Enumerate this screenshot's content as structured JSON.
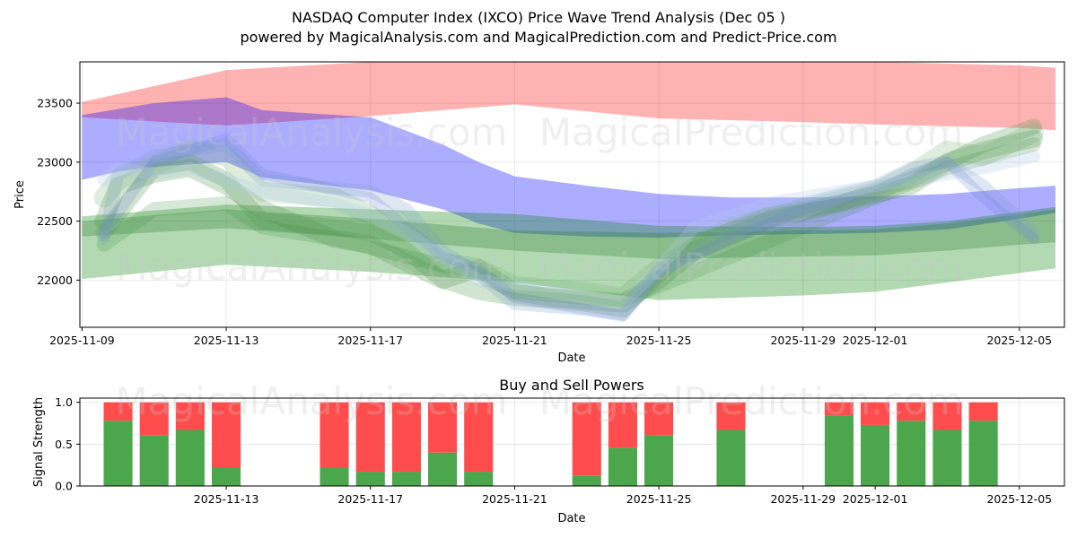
{
  "header": {
    "title": "NASDAQ Computer Index (IXCO) Price Wave Trend Analysis (Dec 05 )",
    "subtitle": "powered by MagicalAnalysis.com and MagicalPrediction.com and Predict-Price.com"
  },
  "watermarks": [
    "MagicalAnalysis.com",
    "MagicalPrediction.com"
  ],
  "chart_data": [
    {
      "type": "area",
      "title": "NASDAQ Computer Index (IXCO) Price Wave Trend Analysis (Dec 05 )",
      "xlabel": "Date",
      "ylabel": "Price",
      "x_range": [
        "2025-11-09",
        "2025-12-06"
      ],
      "ylim": [
        21600,
        23850
      ],
      "x_ticks": [
        {
          "date": "2025-11-09",
          "label": "2025-11-09"
        },
        {
          "date": "2025-11-13",
          "label": "2025-11-13"
        },
        {
          "date": "2025-11-17",
          "label": "2025-11-17"
        },
        {
          "date": "2025-11-21",
          "label": "2025-11-21"
        },
        {
          "date": "2025-11-25",
          "label": "2025-11-25"
        },
        {
          "date": "2025-11-29",
          "label": "2025-11-29"
        },
        {
          "date": "2025-12-01",
          "label": "2025-12-01"
        },
        {
          "date": "2025-12-05",
          "label": "2025-12-05"
        }
      ],
      "y_ticks": [
        {
          "value": 22000,
          "label": "22000"
        },
        {
          "value": 22500,
          "label": "22500"
        },
        {
          "value": 23000,
          "label": "23000"
        },
        {
          "value": 23500,
          "label": "23500"
        }
      ],
      "grid": true,
      "bands": [
        {
          "name": "red-upper-band",
          "color": "#ff0000",
          "opacity": 0.3,
          "x": [
            "2025-11-09",
            "2025-11-13",
            "2025-11-17",
            "2025-11-21",
            "2025-11-25",
            "2025-11-29",
            "2025-12-01",
            "2025-12-05",
            "2025-12-06"
          ],
          "upper": [
            23510,
            23780,
            23850,
            23850,
            23850,
            23850,
            23850,
            23820,
            23800
          ],
          "lower": [
            23380,
            23310,
            23390,
            23490,
            23370,
            23340,
            23320,
            23290,
            23270
          ]
        },
        {
          "name": "blue-band",
          "color": "#0000ff",
          "opacity": 0.32,
          "x": [
            "2025-11-09",
            "2025-11-10",
            "2025-11-11",
            "2025-11-13",
            "2025-11-14",
            "2025-11-17",
            "2025-11-19",
            "2025-11-20",
            "2025-11-21",
            "2025-11-23",
            "2025-11-25",
            "2025-11-27",
            "2025-11-29",
            "2025-12-01",
            "2025-12-03",
            "2025-12-05",
            "2025-12-06"
          ],
          "upper": [
            23400,
            23450,
            23500,
            23550,
            23440,
            23380,
            23150,
            23000,
            22880,
            22800,
            22730,
            22700,
            22700,
            22710,
            22730,
            22780,
            22800
          ],
          "lower": [
            22850,
            22920,
            22960,
            23000,
            22870,
            22760,
            22600,
            22480,
            22400,
            22370,
            22360,
            22380,
            22390,
            22400,
            22430,
            22520,
            22570
          ]
        },
        {
          "name": "green-lower-band",
          "color": "#008000",
          "opacity": 0.3,
          "x": [
            "2025-11-09",
            "2025-11-13",
            "2025-11-17",
            "2025-11-21",
            "2025-11-25",
            "2025-11-29",
            "2025-12-01",
            "2025-12-03",
            "2025-12-05",
            "2025-12-06"
          ],
          "upper": [
            22540,
            22640,
            22600,
            22560,
            22460,
            22450,
            22460,
            22500,
            22580,
            22620
          ],
          "lower": [
            22010,
            22130,
            22070,
            21980,
            21830,
            21870,
            21900,
            21980,
            22060,
            22100
          ]
        },
        {
          "name": "dark-green-band",
          "color": "#2e7d32",
          "opacity": 0.3,
          "x": [
            "2025-11-09",
            "2025-11-13",
            "2025-11-17",
            "2025-11-21",
            "2025-11-25",
            "2025-11-29",
            "2025-12-01",
            "2025-12-03",
            "2025-12-05",
            "2025-12-06"
          ],
          "upper": [
            22500,
            22600,
            22520,
            22420,
            22400,
            22420,
            22430,
            22480,
            22560,
            22600
          ],
          "lower": [
            22370,
            22440,
            22350,
            22250,
            22180,
            22200,
            22210,
            22250,
            22300,
            22320
          ]
        }
      ],
      "wave_lines": [
        {
          "color": "#5a9e5a",
          "opacity": 0.28,
          "width": 18,
          "dates": [
            "2025-11-09.6",
            "2025-11-11",
            "2025-11-12",
            "2025-11-13",
            "2025-11-14",
            "2025-11-16",
            "2025-11-17",
            "2025-11-18",
            "2025-11-19",
            "2025-11-20",
            "2025-11-21",
            "2025-11-22",
            "2025-11-23",
            "2025-11-24",
            "2025-11-25",
            "2025-11-26",
            "2025-11-28",
            "2025-11-30",
            "2025-12-02",
            "2025-12-03",
            "2025-12-04",
            "2025-12-05.4"
          ],
          "values": [
            22400,
            22950,
            23000,
            22850,
            22500,
            22450,
            22400,
            22250,
            22000,
            21900,
            21850,
            21830,
            21800,
            21750,
            22050,
            22300,
            22550,
            22650,
            22850,
            23000,
            23150,
            23300
          ]
        },
        {
          "color": "#4a8f4a",
          "opacity": 0.25,
          "width": 20,
          "dates": [
            "2025-11-09.6",
            "2025-11-10",
            "2025-11-11",
            "2025-11-12",
            "2025-11-13",
            "2025-11-14",
            "2025-11-16",
            "2025-11-17",
            "2025-11-18",
            "2025-11-19",
            "2025-11-20",
            "2025-11-21",
            "2025-11-22",
            "2025-11-24",
            "2025-11-25",
            "2025-11-26",
            "2025-11-28",
            "2025-11-30",
            "2025-12-02",
            "2025-12-03",
            "2025-12-04",
            "2025-12-05.4"
          ],
          "values": [
            22500,
            22800,
            22900,
            22950,
            22800,
            22600,
            22350,
            22300,
            22150,
            22000,
            22100,
            21900,
            21850,
            21800,
            22000,
            22250,
            22500,
            22650,
            22800,
            23000,
            23100,
            23200
          ]
        },
        {
          "color": "#6aae6a",
          "opacity": 0.22,
          "width": 22,
          "dates": [
            "2025-11-09.6",
            "2025-11-10",
            "2025-11-12",
            "2025-11-13",
            "2025-11-14",
            "2025-11-16",
            "2025-11-17",
            "2025-11-18",
            "2025-11-19",
            "2025-11-20",
            "2025-11-21",
            "2025-11-23",
            "2025-11-24",
            "2025-11-25",
            "2025-11-27",
            "2025-11-29",
            "2025-12-01",
            "2025-12-02",
            "2025-12-03",
            "2025-12-04",
            "2025-12-05.4"
          ],
          "values": [
            22700,
            22850,
            23100,
            23050,
            22750,
            22700,
            22550,
            22300,
            22150,
            22100,
            21950,
            21900,
            21850,
            22100,
            22450,
            22600,
            22750,
            22900,
            23100,
            23050,
            23250
          ]
        },
        {
          "color": "#3c8a3c",
          "opacity": 0.2,
          "width": 16,
          "dates": [
            "2025-11-09.6",
            "2025-11-11",
            "2025-11-13",
            "2025-11-14",
            "2025-11-16",
            "2025-11-18",
            "2025-11-20",
            "2025-11-21",
            "2025-11-23",
            "2025-11-24",
            "2025-11-25",
            "2025-11-27",
            "2025-11-29",
            "2025-12-01",
            "2025-12-03",
            "2025-12-05.4"
          ],
          "values": [
            22300,
            22600,
            22650,
            22450,
            22350,
            22200,
            22050,
            21900,
            21850,
            21830,
            21950,
            22200,
            22450,
            22700,
            22950,
            23150
          ]
        },
        {
          "color": "#7f9fd0",
          "opacity": 0.25,
          "width": 14,
          "dates": [
            "2025-11-09.6",
            "2025-11-10",
            "2025-11-11",
            "2025-11-13",
            "2025-11-14",
            "2025-11-17",
            "2025-11-18",
            "2025-11-19",
            "2025-11-20",
            "2025-11-21",
            "2025-11-23",
            "2025-11-24",
            "2025-11-25",
            "2025-11-27",
            "2025-11-29",
            "2025-12-01",
            "2025-12-02",
            "2025-12-03",
            "2025-12-04",
            "2025-12-05.4"
          ],
          "values": [
            22350,
            22900,
            23050,
            23150,
            22850,
            22750,
            22600,
            22250,
            22050,
            21800,
            21750,
            21700,
            22100,
            22400,
            22650,
            22800,
            22950,
            23000,
            22800,
            22400
          ]
        },
        {
          "color": "#6a7fd6",
          "opacity": 0.22,
          "width": 12,
          "dates": [
            "2025-11-09.6",
            "2025-11-11",
            "2025-11-12",
            "2025-11-13",
            "2025-11-14",
            "2025-11-17",
            "2025-11-19",
            "2025-11-20",
            "2025-11-21",
            "2025-11-23",
            "2025-11-24",
            "2025-11-25",
            "2025-11-27",
            "2025-11-29",
            "2025-12-01",
            "2025-12-02",
            "2025-12-03",
            "2025-12-04",
            "2025-12-05.4"
          ],
          "values": [
            22400,
            23000,
            23100,
            23200,
            22900,
            22700,
            22200,
            22100,
            21850,
            21750,
            21700,
            22050,
            22350,
            22600,
            22750,
            22900,
            23000,
            22700,
            22350
          ]
        },
        {
          "color": "#b0c8e8",
          "opacity": 0.28,
          "width": 14,
          "dates": [
            "2025-11-09.6",
            "2025-11-10",
            "2025-11-11",
            "2025-11-12",
            "2025-11-13",
            "2025-11-14",
            "2025-11-16",
            "2025-11-17",
            "2025-11-18",
            "2025-11-19",
            "2025-11-20",
            "2025-11-21",
            "2025-11-23",
            "2025-11-24",
            "2025-11-25",
            "2025-11-26",
            "2025-11-28",
            "2025-11-30",
            "2025-12-02",
            "2025-12-04",
            "2025-12-05.4"
          ],
          "values": [
            22850,
            22950,
            22900,
            22950,
            22850,
            22750,
            22650,
            22550,
            22400,
            22200,
            22000,
            21950,
            21850,
            21800,
            22100,
            22450,
            22650,
            22750,
            22850,
            22950,
            23050
          ]
        }
      ]
    },
    {
      "type": "bar",
      "title": "Buy and Sell Powers",
      "xlabel": "Date",
      "ylabel": "Signal Strength",
      "x_range": [
        "2025-11-09",
        "2025-12-06"
      ],
      "ylim": [
        0,
        1.05
      ],
      "x_ticks": [
        {
          "date": "2025-11-13",
          "label": "2025-11-13"
        },
        {
          "date": "2025-11-17",
          "label": "2025-11-17"
        },
        {
          "date": "2025-11-21",
          "label": "2025-11-21"
        },
        {
          "date": "2025-11-25",
          "label": "2025-11-25"
        },
        {
          "date": "2025-11-29",
          "label": "2025-11-29"
        },
        {
          "date": "2025-12-01",
          "label": "2025-12-01"
        },
        {
          "date": "2025-12-05",
          "label": "2025-12-05"
        }
      ],
      "y_ticks": [
        {
          "value": 0.0,
          "label": "0.0"
        },
        {
          "value": 0.5,
          "label": "0.5"
        },
        {
          "value": 1.0,
          "label": "1.0"
        }
      ],
      "grid": true,
      "buy_color": "#4ca64c",
      "sell_color": "#ff4d4d",
      "categories": [
        "2025-11-10",
        "2025-11-11",
        "2025-11-12",
        "2025-11-13",
        "2025-11-16",
        "2025-11-17",
        "2025-11-18",
        "2025-11-19",
        "2025-11-20",
        "2025-11-23",
        "2025-11-24",
        "2025-11-25",
        "2025-11-27",
        "2025-11-30",
        "2025-12-01",
        "2025-12-02",
        "2025-12-03",
        "2025-12-04"
      ],
      "series": [
        {
          "name": "Buy",
          "values": [
            0.78,
            0.61,
            0.67,
            0.22,
            0.22,
            0.17,
            0.17,
            0.4,
            0.17,
            0.12,
            0.46,
            0.61,
            0.67,
            0.84,
            0.73,
            0.78,
            0.67,
            0.78
          ]
        },
        {
          "name": "Sell",
          "values": [
            0.22,
            0.39,
            0.33,
            0.78,
            0.78,
            0.83,
            0.83,
            0.6,
            0.83,
            0.88,
            0.54,
            0.39,
            0.33,
            0.16,
            0.27,
            0.22,
            0.33,
            0.22
          ]
        }
      ]
    }
  ]
}
